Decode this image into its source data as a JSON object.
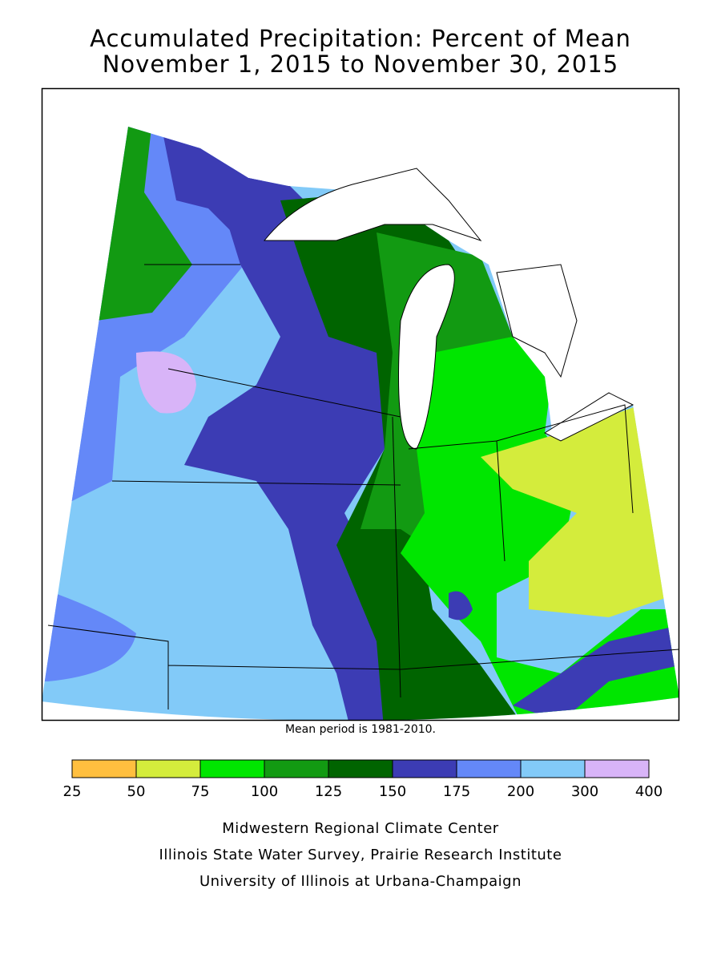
{
  "header": {
    "title_lines": [
      "Accumulated Precipitation: Percent of Mean",
      "November 1, 2015 to November 30, 2015"
    ]
  },
  "note": "Mean period is 1981-2010.",
  "legend": {
    "ticks": [
      25,
      50,
      75,
      100,
      125,
      150,
      175,
      200,
      300,
      400
    ],
    "colors": [
      "#ffbf3f",
      "#d4ec3c",
      "#00e600",
      "#129a12",
      "#006400",
      "#3c3cb4",
      "#6488f8",
      "#82caf8",
      "#d8b4f8"
    ]
  },
  "credits": [
    "Midwestern Regional Climate Center",
    "Illinois State Water Survey, Prairie Research Institute",
    "University of Illinois at Urbana-Champaign"
  ]
}
